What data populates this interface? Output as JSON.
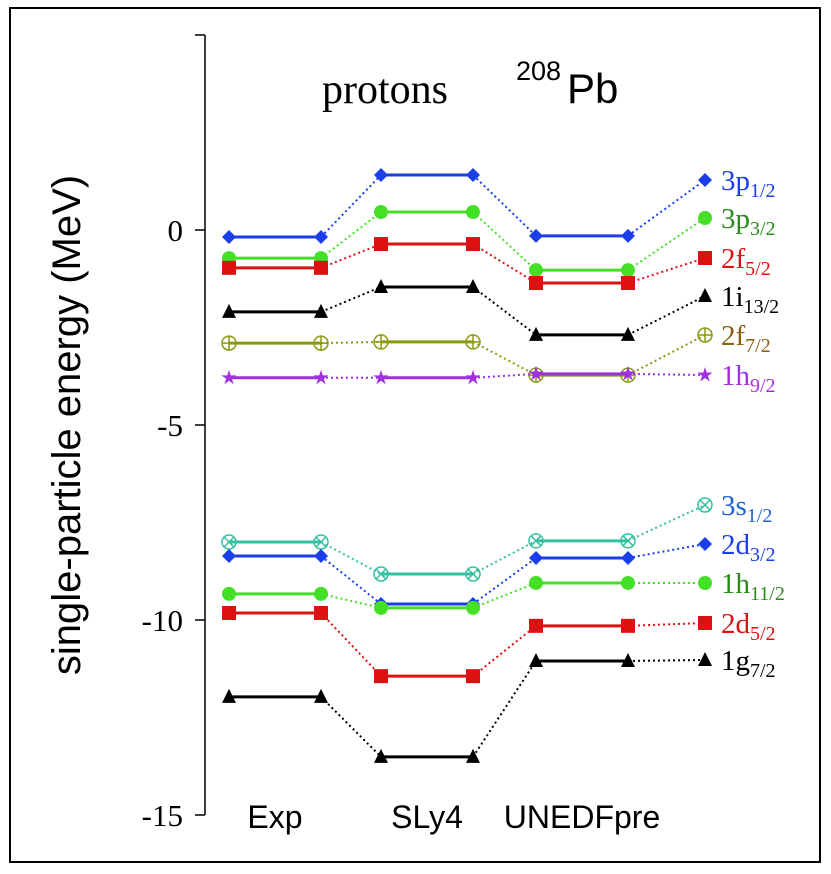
{
  "chart_data": {
    "type": "levels",
    "title": "protons",
    "nucleus": {
      "mass": "208",
      "symbol": "Pb"
    },
    "y_label": "single-particle energy (MeV)",
    "categories": [
      "Exp",
      "SLy4",
      "UNEDFpre"
    ],
    "ylim": [
      -15,
      5
    ],
    "yticks": [
      0,
      -5,
      -10,
      -15
    ],
    "series": [
      {
        "name": "3p",
        "sub": "1/2",
        "color": "#1a3ee8",
        "label_color": "#1a3ee8",
        "marker": "diamond",
        "values": [
          -0.18,
          1.41,
          -0.15
        ]
      },
      {
        "name": "3p",
        "sub": "3/2",
        "color": "#44e026",
        "label_color": "#2a8a1a",
        "marker": "circle",
        "values": [
          -0.72,
          0.46,
          -1.03
        ]
      },
      {
        "name": "2f",
        "sub": "5/2",
        "color": "#dd1111",
        "label_color": "#dd1111",
        "marker": "square",
        "values": [
          -0.97,
          -0.36,
          -1.36
        ]
      },
      {
        "name": "1i",
        "sub": "13/2",
        "color": "#000000",
        "label_color": "#000000",
        "marker": "triangle",
        "values": [
          -2.1,
          -1.46,
          -2.69
        ]
      },
      {
        "name": "2f",
        "sub": "7/2",
        "color": "#8a9a10",
        "label_color": "#8a6010",
        "marker": "circleplus",
        "values": [
          -2.9,
          -2.87,
          -3.72
        ]
      },
      {
        "name": "1h",
        "sub": "9/2",
        "color": "#a030e0",
        "label_color": "#a030e0",
        "marker": "star",
        "values": [
          -3.79,
          -3.79,
          -3.69
        ]
      },
      {
        "name": "3s",
        "sub": "1/2",
        "color": "#33c0a0",
        "label_color": "#2060d0",
        "marker": "circlex",
        "values": [
          -8.0,
          -8.82,
          -7.97
        ]
      },
      {
        "name": "2d",
        "sub": "3/2",
        "color": "#1a3ee8",
        "label_color": "#1a3ee8",
        "marker": "diamond",
        "values": [
          -8.36,
          -9.59,
          -8.41
        ]
      },
      {
        "name": "1h",
        "sub": "11/2",
        "color": "#44e026",
        "label_color": "#2a8a1a",
        "marker": "circle",
        "values": [
          -9.33,
          -9.69,
          -9.05
        ]
      },
      {
        "name": "2d",
        "sub": "5/2",
        "color": "#dd1111",
        "label_color": "#dd1111",
        "marker": "square",
        "values": [
          -9.82,
          -11.44,
          -10.15
        ]
      },
      {
        "name": "1g",
        "sub": "7/2",
        "color": "#000000",
        "label_color": "#000000",
        "marker": "triangle",
        "values": [
          -11.97,
          -13.51,
          -11.05
        ]
      }
    ]
  }
}
